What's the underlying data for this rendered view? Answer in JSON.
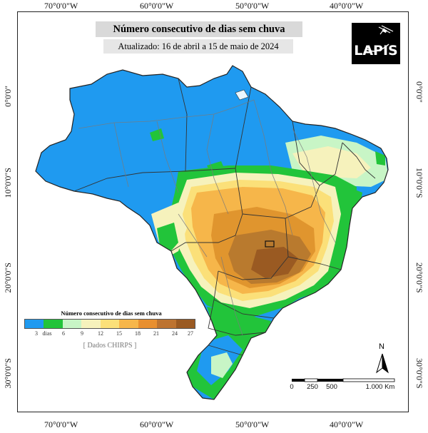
{
  "map": {
    "title": "Número consecutivo de dias sem chuva",
    "subtitle": "Atualizado: 16 de abril a 15 de maio de 2024",
    "logo_text": "LAPIS",
    "graticule": {
      "top": [
        "70°0'0\"W",
        "60°0'0\"W",
        "50°0'0\"W",
        "40°0'0\"W"
      ],
      "bottom": [
        "70°0'0\"W",
        "60°0'0\"W",
        "50°0'0\"W",
        "40°0'0\"W"
      ],
      "left": [
        "0°0'0\"",
        "10°0'0\"S",
        "20°0'0\"S",
        "30°0'0\"S"
      ],
      "right": [
        "0°0'0\"",
        "10°0'0\"S",
        "20°0'0\"S",
        "30°0'0\"S"
      ]
    },
    "legend": {
      "title": "Número consecutivo de dias sem chuva",
      "colors": [
        "#1f9af0",
        "#22c43a",
        "#c8f5c6",
        "#f6f2bc",
        "#fbe079",
        "#f6b64a",
        "#e88f2f",
        "#bd7330",
        "#9a5a22"
      ],
      "labels": [
        "3",
        "dias",
        "6",
        "9",
        "12",
        "15",
        "18",
        "21",
        "24",
        "27"
      ],
      "source": "[ Dados CHIRPS ]"
    },
    "north_label": "N",
    "scale_labels": [
      "0",
      "250",
      "500",
      "1.000 Km"
    ],
    "colors": {
      "blue": "#1f9af0",
      "green": "#22c43a",
      "light_green": "#c8f5c6",
      "pale_yellow": "#f6f2bc",
      "yellow": "#fbe079",
      "orange": "#f6b64a",
      "dark_orange": "#e0952e",
      "brown": "#b97a2e",
      "dark_brown": "#9a5a22"
    }
  }
}
